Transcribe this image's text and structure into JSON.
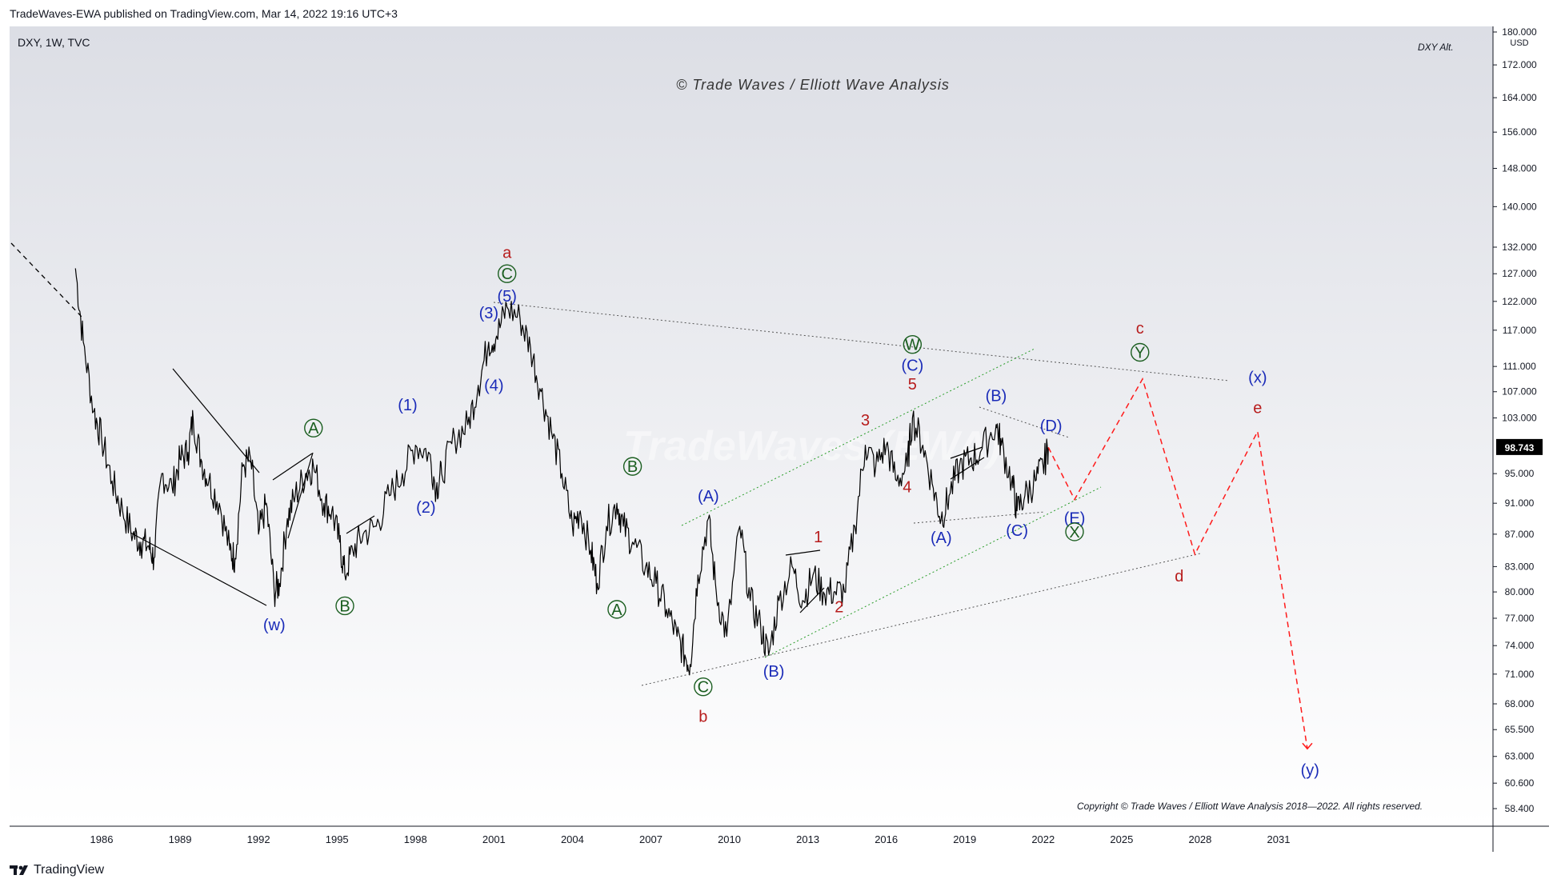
{
  "header": {
    "published": "TradeWaves-EWA published on TradingView.com, Mar 14, 2022 19:16 UTC+3"
  },
  "footer": {
    "brand": "TradingView"
  },
  "symbol": "DXY, 1W, TVC",
  "chart_title": "DXY Alt.",
  "watermark_top": "© Trade Waves / Elliott Wave Analysis",
  "watermark_center": "TradeWaves (EWA)",
  "copyright": "Copyright © Trade Waves / Elliott Wave Analysis 2018—2022. All rights reserved.",
  "colors": {
    "red": "#b71c1c",
    "blue": "#1a2bb8",
    "green": "#1b5e20",
    "price": "#000000",
    "bg_top": "#dcdee5",
    "bg_bottom": "#ffffff"
  },
  "chart_data": {
    "type": "line",
    "series": [
      {
        "values": [
          [
            1985.0,
            128
          ],
          [
            1985.3,
            115
          ],
          [
            1985.7,
            104
          ],
          [
            1986.0,
            100
          ],
          [
            1986.4,
            94
          ],
          [
            1986.8,
            90
          ],
          [
            1987.2,
            87
          ],
          [
            1987.5,
            86
          ],
          [
            1987.8,
            85.5
          ],
          [
            1988.0,
            84
          ],
          [
            1988.3,
            95
          ],
          [
            1988.7,
            93
          ],
          [
            1989.0,
            97
          ],
          [
            1989.3,
            98
          ],
          [
            1989.5,
            103
          ],
          [
            1989.8,
            97
          ],
          [
            1990.1,
            94
          ],
          [
            1990.5,
            91
          ],
          [
            1990.9,
            85
          ],
          [
            1991.1,
            84
          ],
          [
            1991.4,
            96
          ],
          [
            1991.7,
            97
          ],
          [
            1992.0,
            87
          ],
          [
            1992.3,
            91
          ],
          [
            1992.6,
            80
          ],
          [
            1992.8,
            81
          ],
          [
            1993.1,
            89
          ],
          [
            1993.4,
            92
          ],
          [
            1993.8,
            95
          ],
          [
            1994.1,
            96
          ],
          [
            1994.5,
            91
          ],
          [
            1994.8,
            90
          ],
          [
            1995.1,
            86
          ],
          [
            1995.3,
            82
          ],
          [
            1995.6,
            85
          ],
          [
            1996.0,
            87
          ],
          [
            1996.5,
            88
          ],
          [
            1997.0,
            92
          ],
          [
            1997.5,
            95
          ],
          [
            1998.0,
            99
          ],
          [
            1998.5,
            98
          ],
          [
            1998.8,
            93
          ],
          [
            1999.0,
            95
          ],
          [
            1999.5,
            100
          ],
          [
            2000.0,
            102
          ],
          [
            2000.4,
            108
          ],
          [
            2000.8,
            115
          ],
          [
            2001.1,
            116
          ],
          [
            2001.5,
            121
          ],
          [
            2002.0,
            119
          ],
          [
            2002.4,
            114
          ],
          [
            2002.8,
            107
          ],
          [
            2003.2,
            101
          ],
          [
            2003.6,
            95
          ],
          [
            2004.0,
            88
          ],
          [
            2004.3,
            90
          ],
          [
            2004.7,
            85
          ],
          [
            2004.95,
            81
          ],
          [
            2005.3,
            88
          ],
          [
            2005.7,
            91
          ],
          [
            2005.95,
            88
          ],
          [
            2006.3,
            86
          ],
          [
            2006.8,
            83
          ],
          [
            2007.2,
            81
          ],
          [
            2007.6,
            78
          ],
          [
            2008.0,
            75
          ],
          [
            2008.3,
            73
          ],
          [
            2008.5,
            72
          ],
          [
            2008.8,
            82
          ],
          [
            2009.2,
            89
          ],
          [
            2009.5,
            80
          ],
          [
            2009.9,
            75
          ],
          [
            2010.4,
            88
          ],
          [
            2010.8,
            79
          ],
          [
            2011.2,
            76
          ],
          [
            2011.5,
            73
          ],
          [
            2011.9,
            79
          ],
          [
            2012.4,
            83
          ],
          [
            2012.8,
            79
          ],
          [
            2013.2,
            82
          ],
          [
            2013.6,
            80
          ],
          [
            2014.0,
            80
          ],
          [
            2014.4,
            80
          ],
          [
            2014.8,
            88
          ],
          [
            2015.2,
            99
          ],
          [
            2015.6,
            96
          ],
          [
            2016.0,
            99
          ],
          [
            2016.4,
            94
          ],
          [
            2016.8,
            96
          ],
          [
            2017.0,
            103
          ],
          [
            2017.4,
            99
          ],
          [
            2017.8,
            93
          ],
          [
            2018.1,
            89
          ],
          [
            2018.4,
            92
          ],
          [
            2018.8,
            96
          ],
          [
            2019.2,
            97
          ],
          [
            2019.6,
            98
          ],
          [
            2020.2,
            102
          ],
          [
            2020.4,
            99
          ],
          [
            2020.8,
            94
          ],
          [
            2021.0,
            90
          ],
          [
            2021.3,
            92
          ],
          [
            2021.7,
            94
          ],
          [
            2022.0,
            96
          ],
          [
            2022.2,
            98.7
          ]
        ]
      }
    ],
    "x_ticks": [
      "1986",
      "1989",
      "1992",
      "1995",
      "1998",
      "2001",
      "2004",
      "2007",
      "2010",
      "2013",
      "2016",
      "2019",
      "2022",
      "2025",
      "2028",
      "2031"
    ],
    "y_unit": "USD",
    "y_ticks": [
      "180.000",
      "172.000",
      "164.000",
      "156.000",
      "148.000",
      "140.000",
      "132.000",
      "127.000",
      "122.000",
      "117.000",
      "111.000",
      "107.000",
      "103.000",
      "98.743",
      "95.000",
      "91.000",
      "87.000",
      "83.000",
      "80.000",
      "77.000",
      "74.000",
      "71.000",
      "68.000",
      "65.500",
      "63.000",
      "60.600",
      "58.400"
    ],
    "last_price": "98.743",
    "y_scale": "log",
    "projection": [
      [
        2022.2,
        98.7
      ],
      [
        2023.2,
        91.5
      ],
      [
        2025.8,
        109
      ],
      [
        2027.8,
        84.5
      ],
      [
        2030.2,
        101
      ],
      [
        2032.1,
        63.7
      ]
    ],
    "labels": [
      {
        "text": "a",
        "t": 2001.5,
        "v": 131,
        "color": "red"
      },
      {
        "text": "C",
        "t": 2001.5,
        "v": 127,
        "color": "green",
        "circle": true
      },
      {
        "text": "(5)",
        "t": 2001.5,
        "v": 123,
        "color": "blue"
      },
      {
        "text": "(3)",
        "t": 2000.8,
        "v": 120,
        "color": "blue"
      },
      {
        "text": "(4)",
        "t": 2001.0,
        "v": 108,
        "color": "blue"
      },
      {
        "text": "(1)",
        "t": 1997.7,
        "v": 105,
        "color": "blue"
      },
      {
        "text": "(2)",
        "t": 1998.4,
        "v": 90.5,
        "color": "blue"
      },
      {
        "text": "A",
        "t": 1994.1,
        "v": 101.5,
        "color": "green",
        "circle": true
      },
      {
        "text": "B",
        "t": 1995.3,
        "v": 78.4,
        "color": "green",
        "circle": true
      },
      {
        "text": "(w)",
        "t": 1992.6,
        "v": 76.3,
        "color": "blue"
      },
      {
        "text": "B",
        "t": 2006.3,
        "v": 96,
        "color": "green",
        "circle": true
      },
      {
        "text": "A",
        "t": 2005.7,
        "v": 78,
        "color": "green",
        "circle": true
      },
      {
        "text": "(A)",
        "t": 2009.2,
        "v": 92,
        "color": "blue"
      },
      {
        "text": "C",
        "t": 2009.0,
        "v": 69.7,
        "color": "green",
        "circle": true
      },
      {
        "text": "b",
        "t": 2009.0,
        "v": 66.8,
        "color": "red"
      },
      {
        "text": "(B)",
        "t": 2011.7,
        "v": 71.3,
        "color": "blue"
      },
      {
        "text": "1",
        "t": 2013.4,
        "v": 86.7,
        "color": "red"
      },
      {
        "text": "2",
        "t": 2014.2,
        "v": 78.3,
        "color": "red"
      },
      {
        "text": "3",
        "t": 2015.2,
        "v": 102.7,
        "color": "red"
      },
      {
        "text": "4",
        "t": 2016.8,
        "v": 93.2,
        "color": "red"
      },
      {
        "text": "5",
        "t": 2017.0,
        "v": 108.2,
        "color": "red"
      },
      {
        "text": "(C)",
        "t": 2017.0,
        "v": 111.2,
        "color": "blue"
      },
      {
        "text": "W",
        "t": 2017.0,
        "v": 114.6,
        "color": "green",
        "circle": true
      },
      {
        "text": "(B)",
        "t": 2020.2,
        "v": 106.4,
        "color": "blue"
      },
      {
        "text": "(A)",
        "t": 2018.1,
        "v": 86.6,
        "color": "blue"
      },
      {
        "text": "(C)",
        "t": 2021.0,
        "v": 87.5,
        "color": "blue"
      },
      {
        "text": "(D)",
        "t": 2022.3,
        "v": 101.9,
        "color": "blue"
      },
      {
        "text": "(E)",
        "t": 2023.2,
        "v": 89.1,
        "color": "blue"
      },
      {
        "text": "X",
        "t": 2023.2,
        "v": 87.3,
        "color": "green",
        "circle": true
      },
      {
        "text": "c",
        "t": 2025.7,
        "v": 117.4,
        "color": "red"
      },
      {
        "text": "Y",
        "t": 2025.7,
        "v": 113.3,
        "color": "green",
        "circle": true
      },
      {
        "text": "(x)",
        "t": 2030.2,
        "v": 109.3,
        "color": "blue"
      },
      {
        "text": "e",
        "t": 2030.2,
        "v": 104.6,
        "color": "red"
      },
      {
        "text": "d",
        "t": 2027.2,
        "v": 81.9,
        "color": "red"
      },
      {
        "text": "(y)",
        "t": 2032.2,
        "v": 61.8,
        "color": "blue"
      }
    ]
  }
}
